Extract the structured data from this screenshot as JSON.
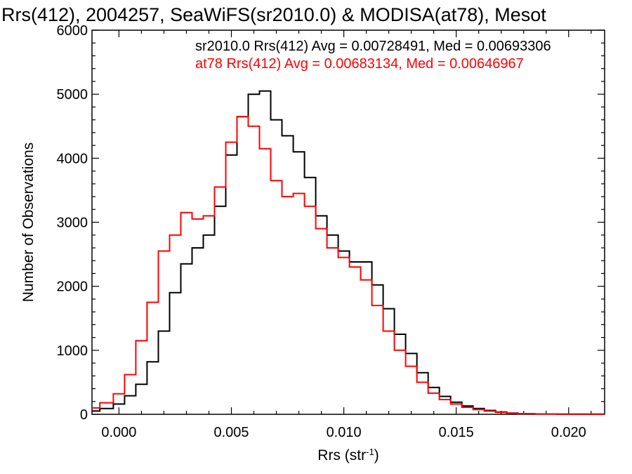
{
  "chart_data": {
    "type": "line",
    "title": "Rrs(412), 2004257, SeaWiFS(sr2010.0) & MODISA(at78), Mesot",
    "xlabel_main": "Rrs (str",
    "xlabel_sup": "-1",
    "xlabel_close": ")",
    "ylabel": "Number of Observations",
    "xlim": [
      -0.0012,
      0.0216
    ],
    "ylim": [
      0,
      6000
    ],
    "x_ticks": [
      0.0,
      0.005,
      0.01,
      0.015,
      0.02
    ],
    "x_tick_labels": [
      "0.000",
      "0.005",
      "0.010",
      "0.015",
      "0.020"
    ],
    "y_ticks": [
      0,
      1000,
      2000,
      3000,
      4000,
      5000,
      6000
    ],
    "y_tick_labels": [
      "0",
      "1000",
      "2000",
      "3000",
      "4000",
      "5000",
      "6000"
    ],
    "grid": false,
    "legend_position": "top-right",
    "legend": [
      {
        "text": "sr2010.0 Rrs(412) Avg = 0.00728491, Med = 0.00693306",
        "color": "#000000"
      },
      {
        "text": "at78 Rrs(412) Avg = 0.00683134, Med = 0.00646967",
        "color": "#ff0000"
      }
    ],
    "series": [
      {
        "name": "sr2010.0",
        "color": "#000000",
        "points": [
          [
            -0.0012,
            50
          ],
          [
            -0.0005,
            90
          ],
          [
            0.0,
            160
          ],
          [
            0.0005,
            290
          ],
          [
            0.001,
            470
          ],
          [
            0.0015,
            820
          ],
          [
            0.002,
            1300
          ],
          [
            0.0025,
            1900
          ],
          [
            0.003,
            2350
          ],
          [
            0.0035,
            2600
          ],
          [
            0.004,
            2800
          ],
          [
            0.0045,
            3250
          ],
          [
            0.005,
            4050
          ],
          [
            0.0055,
            4650
          ],
          [
            0.006,
            5000
          ],
          [
            0.0065,
            5050
          ],
          [
            0.007,
            4600
          ],
          [
            0.0075,
            4350
          ],
          [
            0.008,
            4100
          ],
          [
            0.0085,
            3700
          ],
          [
            0.009,
            3100
          ],
          [
            0.0095,
            2800
          ],
          [
            0.01,
            2550
          ],
          [
            0.0105,
            2380
          ],
          [
            0.011,
            2380
          ],
          [
            0.0115,
            2020
          ],
          [
            0.012,
            1650
          ],
          [
            0.0125,
            1250
          ],
          [
            0.013,
            950
          ],
          [
            0.0135,
            650
          ],
          [
            0.014,
            420
          ],
          [
            0.0145,
            280
          ],
          [
            0.015,
            190
          ],
          [
            0.0155,
            130
          ],
          [
            0.016,
            90
          ],
          [
            0.0165,
            60
          ],
          [
            0.017,
            35
          ],
          [
            0.0175,
            20
          ],
          [
            0.018,
            10
          ],
          [
            0.019,
            5
          ],
          [
            0.02,
            3
          ],
          [
            0.0216,
            2
          ]
        ]
      },
      {
        "name": "at78",
        "color": "#ff0000",
        "points": [
          [
            -0.0012,
            100
          ],
          [
            -0.0005,
            180
          ],
          [
            0.0,
            320
          ],
          [
            0.0005,
            620
          ],
          [
            0.001,
            1150
          ],
          [
            0.0015,
            1750
          ],
          [
            0.002,
            2550
          ],
          [
            0.0025,
            2800
          ],
          [
            0.003,
            3150
          ],
          [
            0.0035,
            3050
          ],
          [
            0.004,
            3100
          ],
          [
            0.0045,
            3550
          ],
          [
            0.005,
            4250
          ],
          [
            0.0055,
            4650
          ],
          [
            0.006,
            4500
          ],
          [
            0.0065,
            4150
          ],
          [
            0.007,
            3650
          ],
          [
            0.0075,
            3400
          ],
          [
            0.008,
            3450
          ],
          [
            0.0085,
            3250
          ],
          [
            0.009,
            2900
          ],
          [
            0.0095,
            2600
          ],
          [
            0.01,
            2450
          ],
          [
            0.0105,
            2300
          ],
          [
            0.011,
            2100
          ],
          [
            0.0115,
            1700
          ],
          [
            0.012,
            1300
          ],
          [
            0.0125,
            1000
          ],
          [
            0.013,
            750
          ],
          [
            0.0135,
            500
          ],
          [
            0.014,
            330
          ],
          [
            0.0145,
            230
          ],
          [
            0.015,
            160
          ],
          [
            0.0155,
            110
          ],
          [
            0.016,
            75
          ],
          [
            0.0165,
            50
          ],
          [
            0.017,
            30
          ],
          [
            0.0175,
            18
          ],
          [
            0.018,
            10
          ],
          [
            0.019,
            5
          ],
          [
            0.02,
            3
          ],
          [
            0.0216,
            2
          ]
        ]
      }
    ]
  }
}
